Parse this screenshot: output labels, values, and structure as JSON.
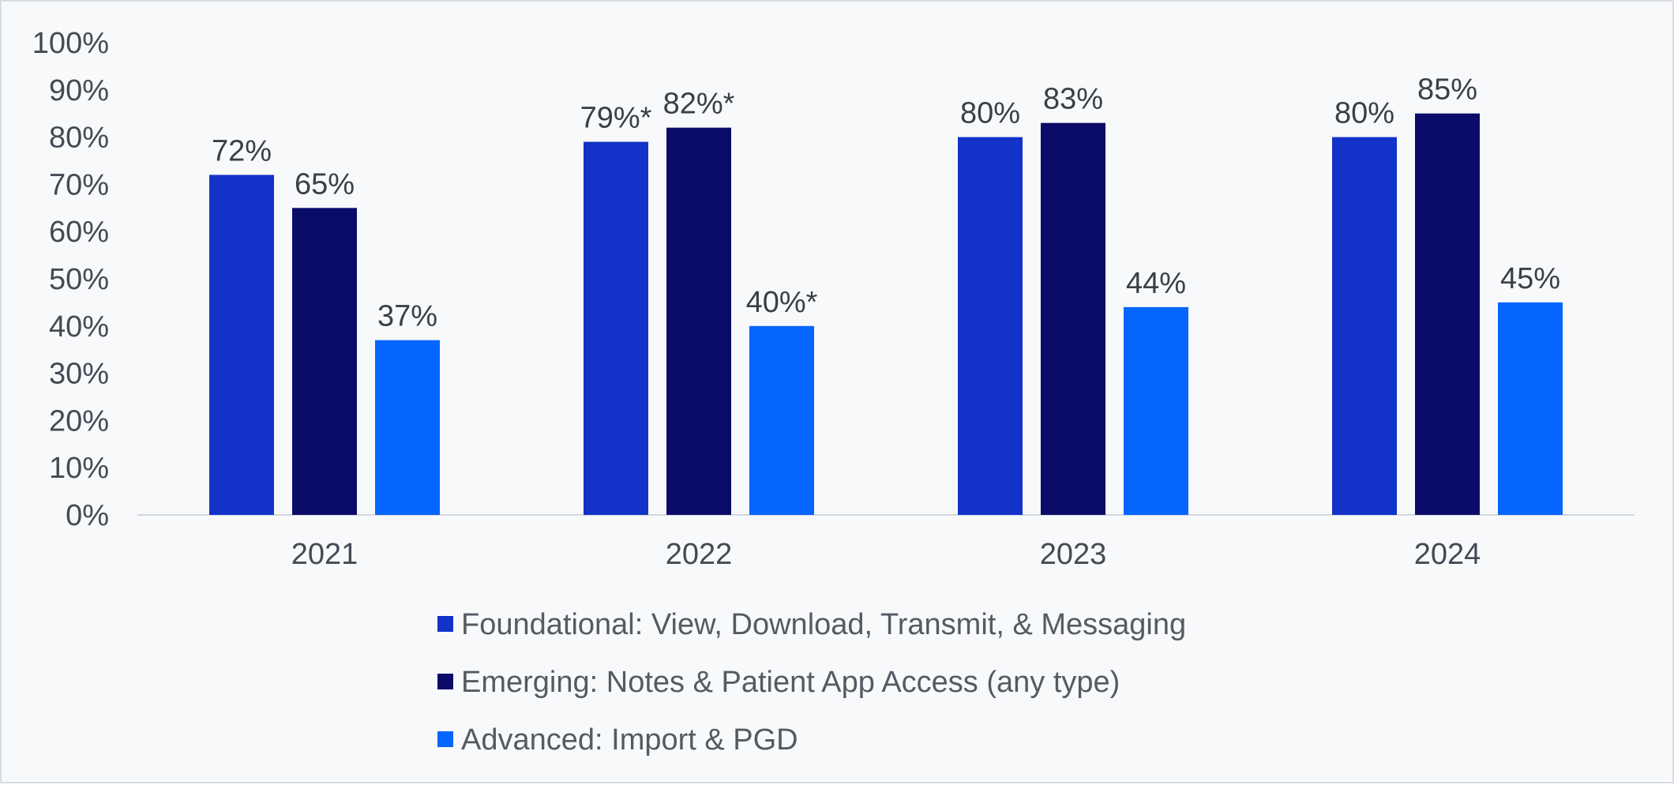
{
  "chart_data": {
    "type": "bar",
    "title": "",
    "xlabel": "",
    "ylabel": "",
    "ylim": [
      0,
      100
    ],
    "yticks": [
      "0%",
      "10%",
      "20%",
      "30%",
      "40%",
      "50%",
      "60%",
      "70%",
      "80%",
      "90%",
      "100%"
    ],
    "categories": [
      "2021",
      "2022",
      "2023",
      "2024"
    ],
    "series": [
      {
        "name": "Foundational: View, Download, Transmit, & Messaging",
        "color": "#1232c8",
        "values": [
          72,
          79,
          80,
          80
        ],
        "labels": [
          "72%",
          "79%*",
          "80%",
          "80%"
        ]
      },
      {
        "name": "Emerging: Notes & Patient App Access (any type)",
        "color": "#0b0c6a",
        "values": [
          65,
          82,
          83,
          85
        ],
        "labels": [
          "65%",
          "82%*",
          "83%",
          "85%"
        ]
      },
      {
        "name": "Advanced: Import & PGD",
        "color": "#0466ff",
        "values": [
          37,
          40,
          44,
          45
        ],
        "labels": [
          "37%",
          "40%*",
          "44%",
          "45%"
        ]
      }
    ],
    "legend_position": "bottom"
  }
}
